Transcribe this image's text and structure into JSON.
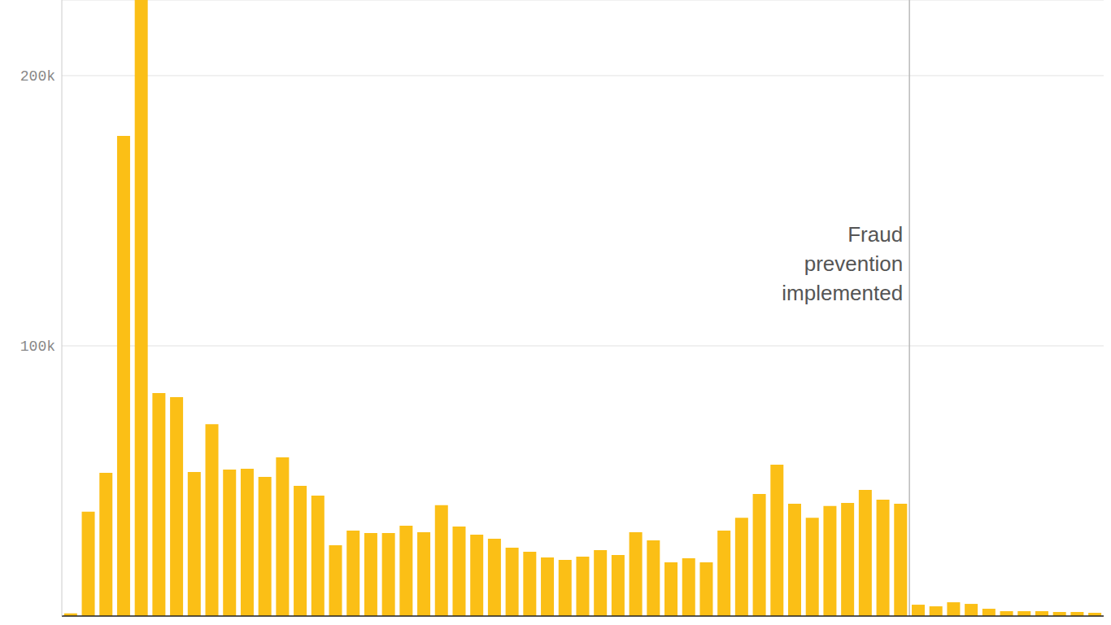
{
  "chart_data": {
    "type": "bar",
    "categories": [
      null,
      null,
      null,
      null,
      null,
      null,
      null,
      null,
      null,
      null,
      null,
      null,
      null,
      null,
      null,
      null,
      null,
      null,
      null,
      null,
      null,
      null,
      null,
      null,
      null,
      null,
      null,
      null,
      null,
      null,
      null,
      null,
      null,
      null,
      null,
      null,
      null,
      null,
      null,
      null,
      null,
      null,
      null,
      null,
      null,
      null,
      null,
      null,
      null,
      null,
      null,
      null,
      null,
      null,
      null,
      null,
      null,
      null,
      null
    ],
    "values": [
      1000,
      38600,
      53000,
      177700,
      228000,
      82500,
      81000,
      53300,
      71000,
      54200,
      54500,
      51500,
      58700,
      48200,
      44600,
      26200,
      31600,
      30700,
      30700,
      33400,
      31000,
      41000,
      33100,
      30100,
      28600,
      25300,
      23800,
      21700,
      20800,
      22000,
      24400,
      22600,
      31000,
      28000,
      19900,
      21400,
      19900,
      31600,
      36400,
      45200,
      56000,
      41600,
      36400,
      40700,
      41900,
      46700,
      43100,
      41600,
      4200,
      3600,
      5100,
      4500,
      2700,
      1800,
      1800,
      1800,
      1500,
      1500,
      1200
    ],
    "color": "#fbbf16",
    "ylim": [
      0,
      228000
    ],
    "yticks": [
      {
        "value": 100000,
        "label": "100k"
      },
      {
        "value": 200000,
        "label": "200k"
      }
    ],
    "grid": true,
    "annotations": [
      {
        "text": "Fraud prevention implemented",
        "x": 48
      }
    ]
  }
}
